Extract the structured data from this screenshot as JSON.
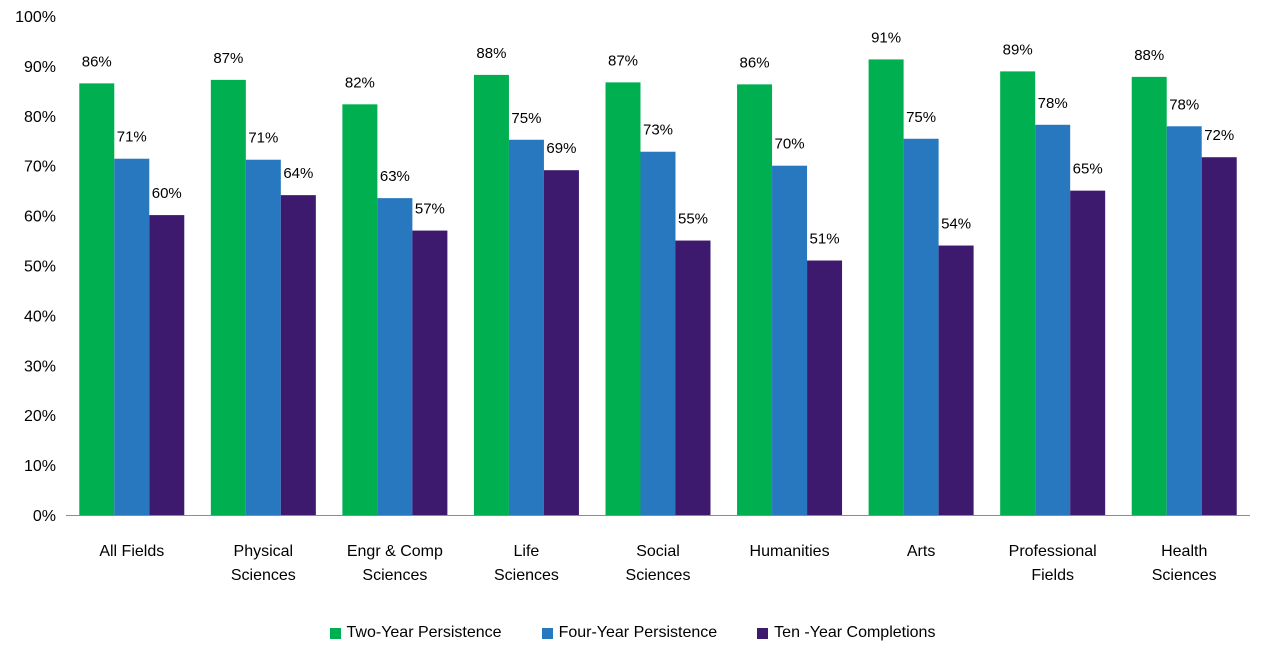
{
  "chart_data": {
    "type": "bar",
    "categories": [
      [
        "All Fields"
      ],
      [
        "Physical",
        "Sciences"
      ],
      [
        "Engr & Comp",
        "Sciences"
      ],
      [
        "Life",
        "Sciences"
      ],
      [
        "Social",
        "Sciences"
      ],
      [
        "Humanities"
      ],
      [
        "Arts"
      ],
      [
        "Professional",
        "Fields"
      ],
      [
        "Health",
        "Sciences"
      ]
    ],
    "series": [
      {
        "name": "Two-Year Persistence",
        "color": "#00b050",
        "values": [
          86.5,
          87.2,
          82.3,
          88.2,
          86.7,
          86.3,
          91.3,
          88.9,
          87.8
        ],
        "labels": [
          "86%",
          "87%",
          "82%",
          "88%",
          "87%",
          "86%",
          "91%",
          "89%",
          "88%"
        ]
      },
      {
        "name": "Four-Year Persistence",
        "color": "#2878c0",
        "values": [
          71.4,
          71.2,
          63.5,
          75.2,
          72.8,
          70.0,
          75.4,
          78.2,
          77.9
        ],
        "labels": [
          "71%",
          "71%",
          "63%",
          "75%",
          "73%",
          "70%",
          "75%",
          "78%",
          "78%"
        ]
      },
      {
        "name": "Ten -Year Completions",
        "color": "#3d1a6e",
        "values": [
          60.1,
          64.1,
          57.0,
          69.1,
          55.0,
          51.0,
          54.0,
          65.0,
          71.7
        ],
        "labels": [
          "60%",
          "64%",
          "57%",
          "69%",
          "55%",
          "51%",
          "54%",
          "65%",
          "72%"
        ]
      }
    ],
    "y_ticks": [
      "0%",
      "10%",
      "20%",
      "30%",
      "40%",
      "50%",
      "60%",
      "70%",
      "80%",
      "90%",
      "100%"
    ],
    "ylim": [
      0,
      100
    ],
    "grid": false,
    "legend_position": "bottom",
    "title": "",
    "xlabel": "",
    "ylabel": ""
  }
}
